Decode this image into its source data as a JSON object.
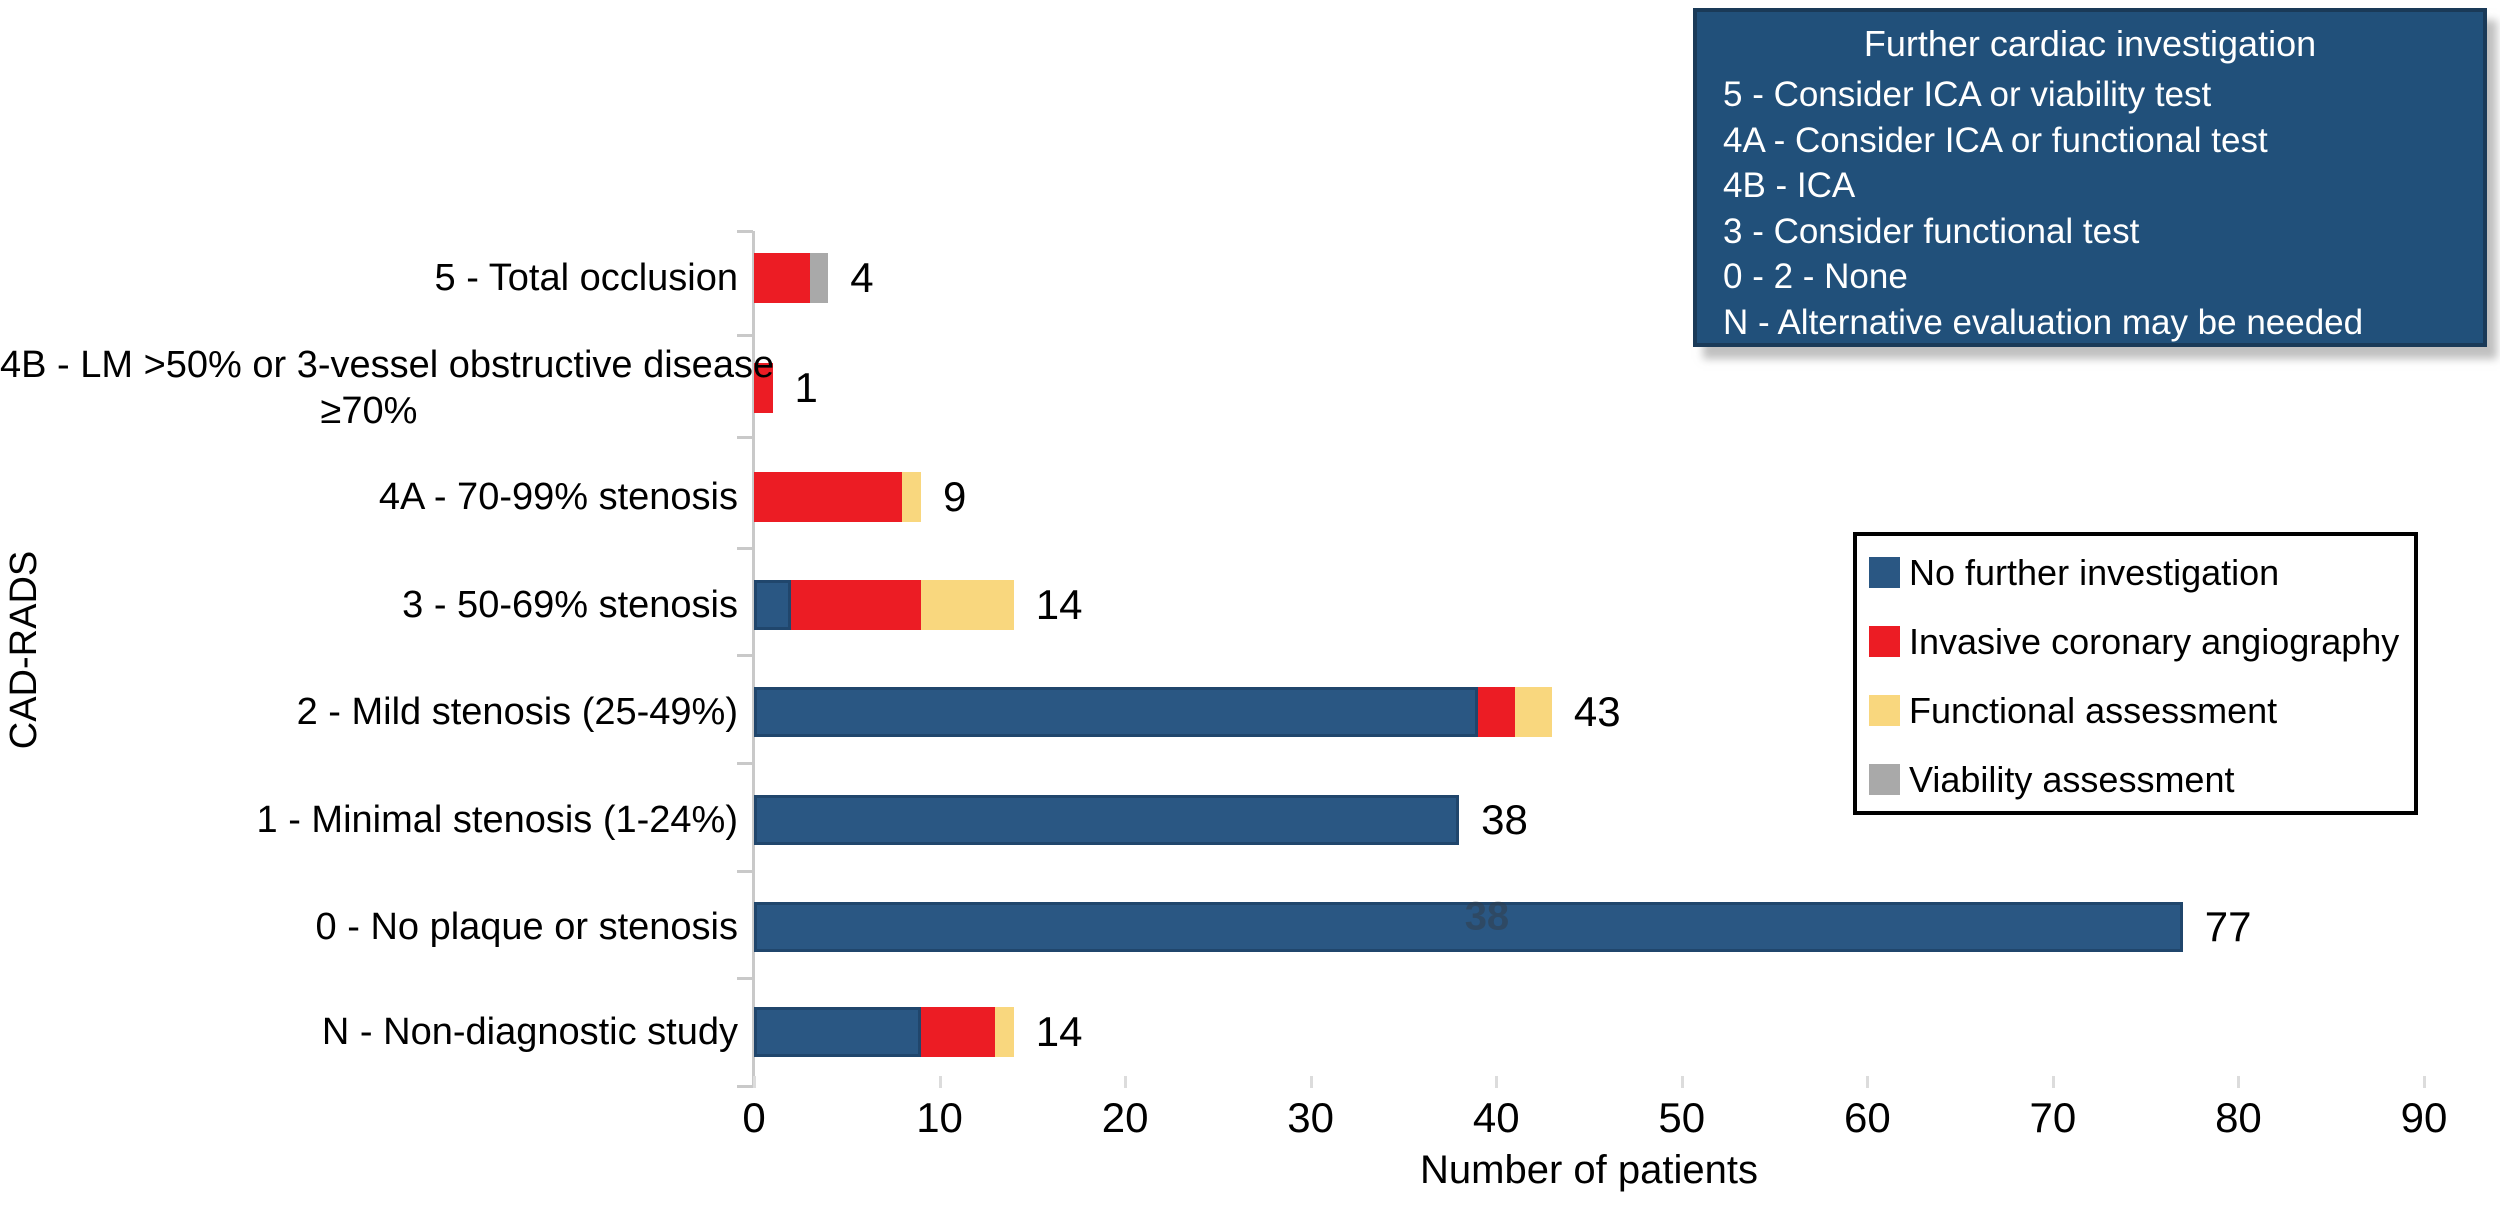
{
  "figure": {
    "background": "#FFFFFF"
  },
  "info_box": {
    "title": "Further cardiac investigation",
    "items": [
      "5 - Consider ICA or viability test",
      "4A - Consider ICA or functional test",
      "4B - ICA",
      "3 - Consider functional test",
      "0 - 2 - None",
      "N - Alternative evaluation may be needed"
    ],
    "bg_color": "#21507A",
    "text_color": "#FFFFFF"
  },
  "chart_data": {
    "type": "bar",
    "orientation": "horizontal",
    "title": "",
    "xlabel": "Number of patients",
    "ylabel": "CAD-RADS",
    "xlim": [
      0,
      90
    ],
    "xticks": [
      0,
      10,
      20,
      30,
      40,
      50,
      60,
      70,
      80,
      90
    ],
    "grid": false,
    "legend_position": "right-box",
    "categories": [
      "5 - Total occlusion",
      "4B - LM >50% or  3-vessel obstructive disease ≥70%",
      "4A - 70-99% stenosis",
      "3 - 50-69% stenosis",
      "2 - Mild stenosis (25-49%)",
      "1 - Minimal stenosis (1-24%)",
      "0 - No plaque or stenosis",
      "N - Non-diagnostic study"
    ],
    "category_label_lines": [
      [
        "5 - Total occlusion"
      ],
      [
        "4B - LM >50% or  3-vessel obstructive disease",
        "≥70%"
      ],
      [
        "4A - 70-99% stenosis"
      ],
      [
        "3 - 50-69% stenosis"
      ],
      [
        "2 - Mild stenosis (25-49%)"
      ],
      [
        "1 - Minimal stenosis (1-24%)"
      ],
      [
        "0 - No plaque or stenosis"
      ],
      [
        "N - Non-diagnostic study"
      ]
    ],
    "series": [
      {
        "name": "No further investigation",
        "color": "#2A5783",
        "values": [
          0,
          0,
          0,
          2,
          39,
          38,
          77,
          9
        ]
      },
      {
        "name": "Invasive coronary angiography",
        "color": "#EC1C24",
        "values": [
          3,
          1,
          8,
          7,
          2,
          0,
          0,
          4
        ]
      },
      {
        "name": "Functional assessment",
        "color": "#F9D77E",
        "values": [
          0,
          0,
          1,
          5,
          2,
          0,
          0,
          1
        ]
      },
      {
        "name": "Viability assessment",
        "color": "#A9A9A9",
        "values": [
          1,
          0,
          0,
          0,
          0,
          0,
          0,
          0
        ]
      }
    ],
    "totals": [
      4,
      1,
      9,
      14,
      43,
      38,
      77,
      14
    ],
    "annotations": [
      {
        "text": "38",
        "category_index": 6,
        "x_value": 39.5,
        "style": "faint"
      }
    ],
    "axis_color": "#C9C9C9"
  }
}
